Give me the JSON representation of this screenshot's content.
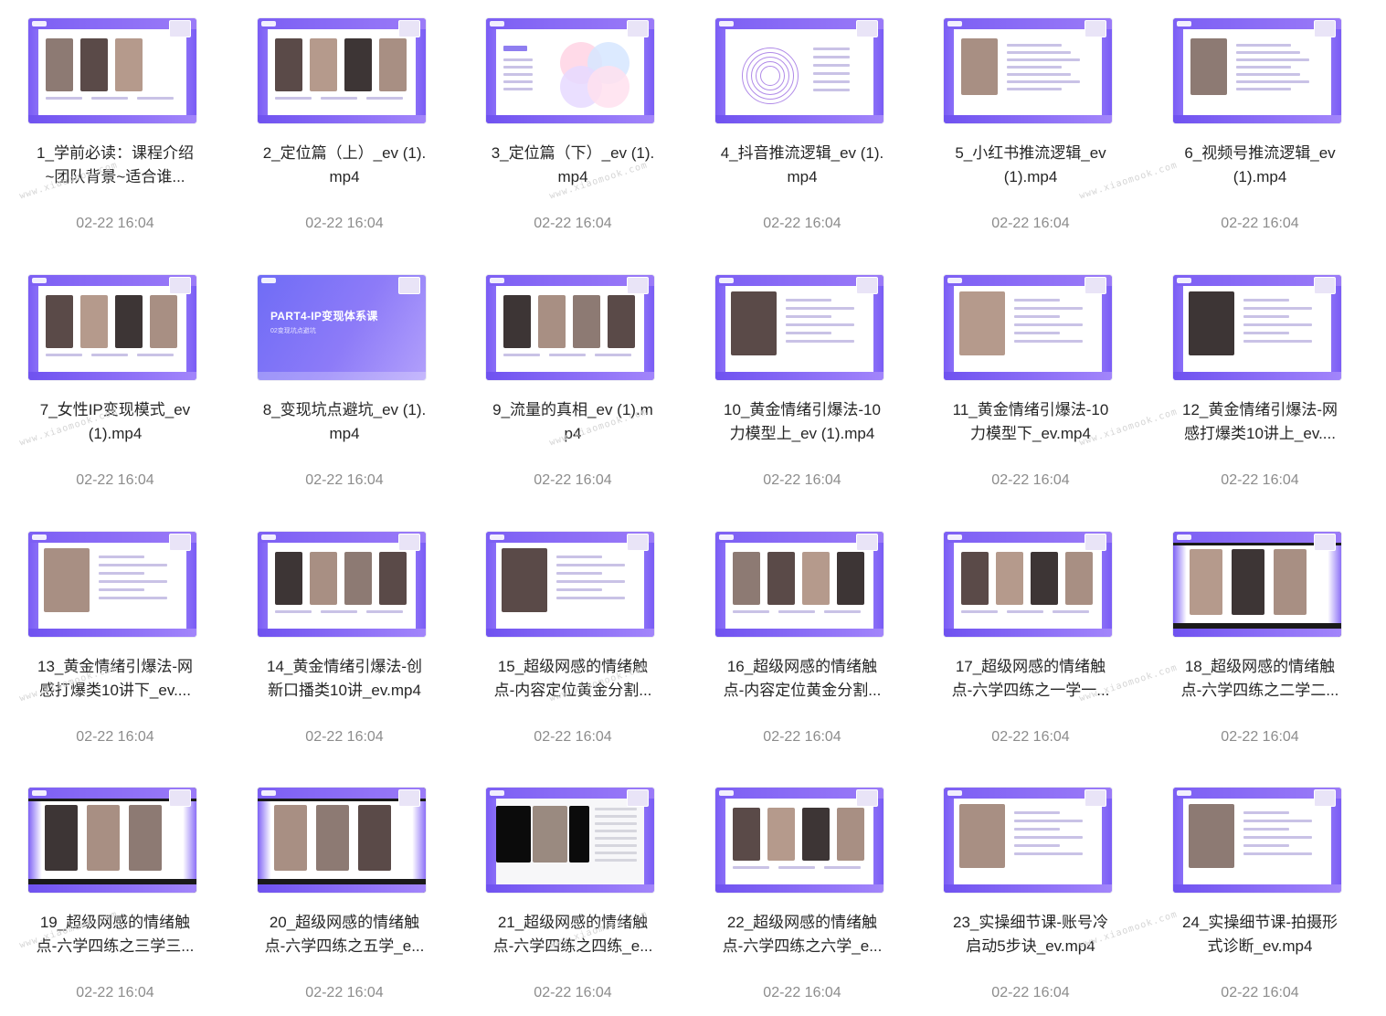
{
  "files": [
    {
      "line1": "1_学前必读：课程介绍",
      "line2": "~团队背景~适合谁...",
      "date": "02-22 16:04",
      "variant": "people"
    },
    {
      "line1": "2_定位篇（上）_ev (1).",
      "line2": "mp4",
      "date": "02-22 16:04",
      "variant": "photos"
    },
    {
      "line1": "3_定位篇（下）_ev (1).",
      "line2": "mp4",
      "date": "02-22 16:04",
      "variant": "venn"
    },
    {
      "line1": "4_抖音推流逻辑_ev (1).",
      "line2": "mp4",
      "date": "02-22 16:04",
      "variant": "circles"
    },
    {
      "line1": "5_小红书推流逻辑_ev",
      "line2": "(1).mp4",
      "date": "02-22 16:04",
      "variant": "text"
    },
    {
      "line1": "6_视频号推流逻辑_ev",
      "line2": "(1).mp4",
      "date": "02-22 16:04",
      "variant": "text"
    },
    {
      "line1": "7_女性IP变现模式_ev",
      "line2": "(1).mp4",
      "date": "02-22 16:04",
      "variant": "photos"
    },
    {
      "line1": "8_变现坑点避坑_ev (1).",
      "line2": "mp4",
      "date": "02-22 16:04",
      "variant": "cover"
    },
    {
      "line1": "9_流量的真相_ev (1).m",
      "line2": "p4",
      "date": "02-22 16:04",
      "variant": "photos"
    },
    {
      "line1": "10_黄金情绪引爆法-10",
      "line2": "力模型上_ev (1).mp4",
      "date": "02-22 16:04",
      "variant": "portrait"
    },
    {
      "line1": "11_黄金情绪引爆法-10",
      "line2": "力模型下_ev.mp4",
      "date": "02-22 16:04",
      "variant": "portrait"
    },
    {
      "line1": "12_黄金情绪引爆法-网",
      "line2": "感打爆类10讲上_ev....",
      "date": "02-22 16:04",
      "variant": "portrait"
    },
    {
      "line1": "13_黄金情绪引爆法-网",
      "line2": "感打爆类10讲下_ev....",
      "date": "02-22 16:04",
      "variant": "portrait"
    },
    {
      "line1": "14_黄金情绪引爆法-创",
      "line2": "新口播类10讲_ev.mp4",
      "date": "02-22 16:04",
      "variant": "photos"
    },
    {
      "line1": "15_超级网感的情绪触",
      "line2": "点-内容定位黄金分割...",
      "date": "02-22 16:04",
      "variant": "portrait"
    },
    {
      "line1": "16_超级网感的情绪触",
      "line2": "点-内容定位黄金分割...",
      "date": "02-22 16:04",
      "variant": "photos"
    },
    {
      "line1": "17_超级网感的情绪触",
      "line2": "点-六学四练之一学一...",
      "date": "02-22 16:04",
      "variant": "photos"
    },
    {
      "line1": "18_超级网感的情绪触",
      "line2": "点-六学四练之二学二...",
      "date": "02-22 16:04",
      "variant": "dark"
    },
    {
      "line1": "19_超级网感的情绪触",
      "line2": "点-六学四练之三学三...",
      "date": "02-22 16:04",
      "variant": "dark"
    },
    {
      "line1": "20_超级网感的情绪触",
      "line2": "点-六学四练之五学_e...",
      "date": "02-22 16:04",
      "variant": "dark"
    },
    {
      "line1": "21_超级网感的情绪触",
      "line2": "点-六学四练之四练_e...",
      "date": "02-22 16:04",
      "variant": "screen"
    },
    {
      "line1": "22_超级网感的情绪触",
      "line2": "点-六学四练之六学_e...",
      "date": "02-22 16:04",
      "variant": "photos"
    },
    {
      "line1": "23_实操细节课-账号冷",
      "line2": "启动5步诀_ev.mp4",
      "date": "02-22 16:04",
      "variant": "portrait"
    },
    {
      "line1": "24_实操细节课-拍摄形",
      "line2": "式诊断_ev.mp4",
      "date": "02-22 16:04",
      "variant": "portrait"
    }
  ],
  "cover": {
    "title": "PART4-IP变现体系课",
    "subtitle": "02变现坑点避坑"
  },
  "watermark": "www.xiaomook.com",
  "colors": {
    "accent": "#7c5ff4",
    "title_text": "#262626",
    "date_text": "#8c8c8c"
  }
}
